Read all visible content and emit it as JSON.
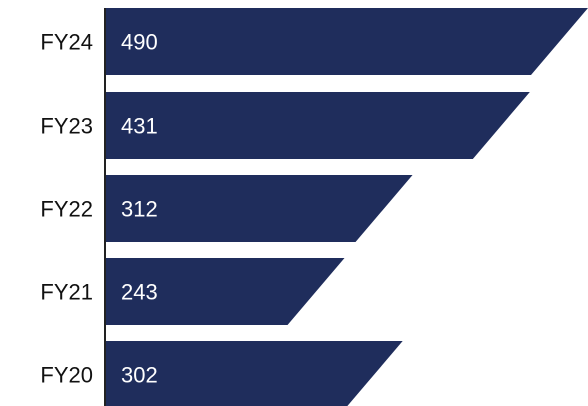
{
  "chart_data": {
    "type": "bar",
    "orientation": "horizontal",
    "categories": [
      "FY24",
      "FY23",
      "FY22",
      "FY21",
      "FY20"
    ],
    "values": [
      490,
      431,
      312,
      243,
      302
    ],
    "title": "",
    "xlabel": "",
    "ylabel": "",
    "bar_color": "#1f2d5c",
    "grid": false,
    "legend": "none"
  }
}
